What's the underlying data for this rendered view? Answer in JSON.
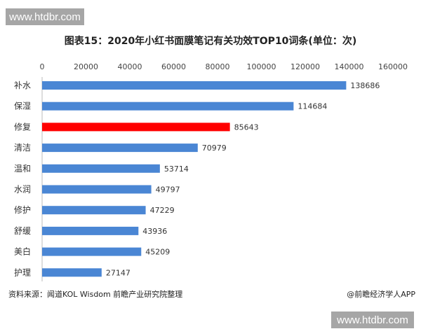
{
  "watermark_text": "www.htdbr.com",
  "chart_data": {
    "type": "bar",
    "orientation": "horizontal",
    "title": "图表15：2020年小红书面膜笔记有关功效TOP10词条(单位：次)",
    "categories": [
      "补水",
      "保湿",
      "修复",
      "清洁",
      "温和",
      "水润",
      "修护",
      "舒缓",
      "美白",
      "护理"
    ],
    "values": [
      138686,
      114684,
      85643,
      70979,
      53714,
      49797,
      47229,
      43936,
      45209,
      27147
    ],
    "xlim": [
      0,
      160000
    ],
    "xticks": [
      "0",
      "20000",
      "40000",
      "60000",
      "80000",
      "100000",
      "120000",
      "140000",
      "160000"
    ],
    "x_axis_position": "top",
    "grid": false,
    "colors": {
      "default": "#4a86d4",
      "highlight": "#ff0000"
    },
    "highlight_category": "修复"
  },
  "footer": {
    "source": "资料来源：闻道KOL Wisdom 前瞻产业研究院整理",
    "credit": "@前瞻经济学人APP"
  }
}
